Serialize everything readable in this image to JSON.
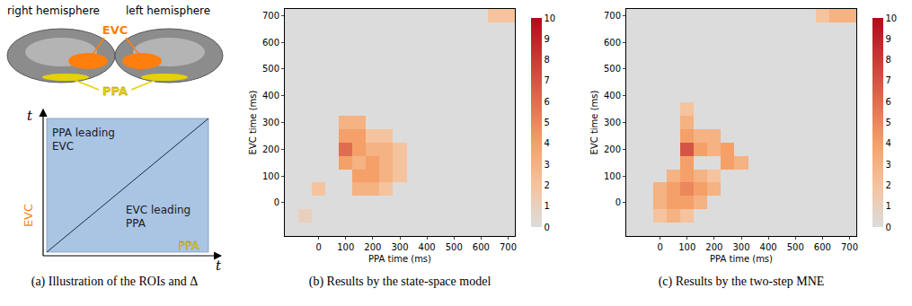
{
  "diagram": {
    "hemispheres": [
      "right hemisphere",
      "left hemisphere"
    ],
    "rois": [
      {
        "name": "EVC",
        "color": "#ff7f0e"
      },
      {
        "name": "PPA",
        "color": "#e6d200"
      }
    ],
    "axis_label": "t",
    "regions": [
      "PPA leading EVC",
      "EVC leading PPA"
    ]
  },
  "captions": [
    "(a) Illustration of the ROIs and Δ",
    "(b) Results by the state-space model",
    "(c) Results by the two-step MNE"
  ],
  "chart_data": [
    {
      "type": "heatmap",
      "x_label": "PPA time (ms)",
      "y_label": "EVC time (ms)",
      "x": [
        -100,
        -50,
        0,
        50,
        100,
        150,
        200,
        250,
        300,
        350,
        400,
        450,
        500,
        550,
        600,
        650,
        700
      ],
      "y": [
        -100,
        -50,
        0,
        50,
        100,
        150,
        200,
        250,
        300,
        350,
        400,
        450,
        500,
        550,
        600,
        650,
        700
      ],
      "xlim": [
        -125,
        725
      ],
      "ylim": [
        -125,
        725
      ],
      "xticks": [
        0,
        100,
        200,
        300,
        400,
        500,
        600,
        700
      ],
      "yticks": [
        0,
        100,
        200,
        300,
        400,
        500,
        600,
        700
      ],
      "zlim": [
        0,
        10
      ],
      "zticks": [
        0,
        1,
        2,
        3,
        4,
        5,
        6,
        7,
        8,
        9,
        10
      ],
      "z": [
        [
          0,
          0,
          0,
          0,
          0,
          0,
          0,
          0,
          0,
          0,
          0,
          0,
          0,
          0,
          0,
          0,
          0
        ],
        [
          0,
          1,
          0,
          0,
          0,
          0,
          0,
          0,
          0,
          0,
          0,
          0,
          0,
          0,
          0,
          0,
          0
        ],
        [
          0,
          0,
          0,
          0,
          0,
          0,
          0,
          0,
          0,
          0,
          0,
          0,
          0,
          0,
          0,
          0,
          0
        ],
        [
          0,
          0,
          2,
          0,
          0,
          3,
          3,
          2,
          0,
          0,
          0,
          0,
          0,
          0,
          0,
          0,
          0
        ],
        [
          0,
          0,
          0,
          0,
          0,
          4,
          4,
          3,
          2,
          0,
          0,
          0,
          0,
          0,
          0,
          0,
          0
        ],
        [
          0,
          0,
          0,
          0,
          4,
          3,
          4,
          3,
          2,
          0,
          0,
          0,
          0,
          0,
          0,
          0,
          0
        ],
        [
          0,
          0,
          0,
          0,
          6,
          4,
          3,
          3,
          2,
          0,
          0,
          0,
          0,
          0,
          0,
          0,
          0
        ],
        [
          0,
          0,
          0,
          0,
          4,
          4,
          2,
          2,
          0,
          0,
          0,
          0,
          0,
          0,
          0,
          0,
          0
        ],
        [
          0,
          0,
          0,
          0,
          3,
          3,
          0,
          0,
          0,
          0,
          0,
          0,
          0,
          0,
          0,
          0,
          0
        ],
        [
          0,
          0,
          0,
          0,
          0,
          0,
          0,
          0,
          0,
          0,
          0,
          0,
          0,
          0,
          0,
          0,
          0
        ],
        [
          0,
          0,
          0,
          0,
          0,
          0,
          0,
          0,
          0,
          0,
          0,
          0,
          0,
          0,
          0,
          0,
          0
        ],
        [
          0,
          0,
          0,
          0,
          0,
          0,
          0,
          0,
          0,
          0,
          0,
          0,
          0,
          0,
          0,
          0,
          0
        ],
        [
          0,
          0,
          0,
          0,
          0,
          0,
          0,
          0,
          0,
          0,
          0,
          0,
          0,
          0,
          0,
          0,
          0
        ],
        [
          0,
          0,
          0,
          0,
          0,
          0,
          0,
          0,
          0,
          0,
          0,
          0,
          0,
          0,
          0,
          0,
          0
        ],
        [
          0,
          0,
          0,
          0,
          0,
          0,
          0,
          0,
          0,
          0,
          0,
          0,
          0,
          0,
          0,
          0,
          0
        ],
        [
          0,
          0,
          0,
          0,
          0,
          0,
          0,
          0,
          0,
          0,
          0,
          0,
          0,
          0,
          0,
          0,
          0
        ],
        [
          0,
          0,
          0,
          0,
          0,
          0,
          0,
          0,
          0,
          0,
          0,
          0,
          0,
          0,
          0,
          2,
          2
        ]
      ]
    },
    {
      "type": "heatmap",
      "x_label": "PPA time (ms)",
      "y_label": "EVC time (ms)",
      "x": [
        -100,
        -50,
        0,
        50,
        100,
        150,
        200,
        250,
        300,
        350,
        400,
        450,
        500,
        550,
        600,
        650,
        700
      ],
      "y": [
        -100,
        -50,
        0,
        50,
        100,
        150,
        200,
        250,
        300,
        350,
        400,
        450,
        500,
        550,
        600,
        650,
        700
      ],
      "xlim": [
        -125,
        725
      ],
      "ylim": [
        -125,
        725
      ],
      "xticks": [
        0,
        100,
        200,
        300,
        400,
        500,
        600,
        700
      ],
      "yticks": [
        0,
        100,
        200,
        300,
        400,
        500,
        600,
        700
      ],
      "zlim": [
        0,
        10
      ],
      "zticks": [
        0,
        1,
        2,
        3,
        4,
        5,
        6,
        7,
        8,
        9,
        10
      ],
      "z": [
        [
          0,
          0,
          0,
          0,
          0,
          0,
          0,
          0,
          0,
          0,
          0,
          0,
          0,
          0,
          0,
          0,
          0
        ],
        [
          0,
          0,
          2,
          3,
          2,
          0,
          0,
          0,
          0,
          0,
          0,
          0,
          0,
          0,
          0,
          0,
          0
        ],
        [
          0,
          0,
          3,
          4,
          4,
          3,
          0,
          0,
          0,
          0,
          0,
          0,
          0,
          0,
          0,
          0,
          0
        ],
        [
          0,
          0,
          3,
          4,
          5,
          4,
          3,
          0,
          0,
          0,
          0,
          0,
          0,
          0,
          0,
          0,
          0
        ],
        [
          0,
          0,
          0,
          3,
          4,
          3,
          2,
          0,
          0,
          0,
          0,
          0,
          0,
          0,
          0,
          0,
          0
        ],
        [
          0,
          0,
          0,
          0,
          4,
          0,
          0,
          4,
          3,
          0,
          0,
          0,
          0,
          0,
          0,
          0,
          0
        ],
        [
          0,
          0,
          0,
          0,
          7,
          4,
          3,
          4,
          0,
          0,
          0,
          0,
          0,
          0,
          0,
          0,
          0
        ],
        [
          0,
          0,
          0,
          0,
          4,
          3,
          3,
          0,
          0,
          0,
          0,
          0,
          0,
          0,
          0,
          0,
          0
        ],
        [
          0,
          0,
          0,
          0,
          3,
          0,
          0,
          0,
          0,
          0,
          0,
          0,
          0,
          0,
          0,
          0,
          0
        ],
        [
          0,
          0,
          0,
          0,
          2,
          0,
          0,
          0,
          0,
          0,
          0,
          0,
          0,
          0,
          0,
          0,
          0
        ],
        [
          0,
          0,
          0,
          0,
          0,
          0,
          0,
          0,
          0,
          0,
          0,
          0,
          0,
          0,
          0,
          0,
          0
        ],
        [
          0,
          0,
          0,
          0,
          0,
          0,
          0,
          0,
          0,
          0,
          0,
          0,
          0,
          0,
          0,
          0,
          0
        ],
        [
          0,
          0,
          0,
          0,
          0,
          0,
          0,
          0,
          0,
          0,
          0,
          0,
          0,
          0,
          0,
          0,
          0
        ],
        [
          0,
          0,
          0,
          0,
          0,
          0,
          0,
          0,
          0,
          0,
          0,
          0,
          0,
          0,
          0,
          0,
          0
        ],
        [
          0,
          0,
          0,
          0,
          0,
          0,
          0,
          0,
          0,
          0,
          0,
          0,
          0,
          0,
          0,
          0,
          0
        ],
        [
          0,
          0,
          0,
          0,
          0,
          0,
          0,
          0,
          0,
          0,
          0,
          0,
          0,
          0,
          0,
          0,
          0
        ],
        [
          0,
          0,
          0,
          0,
          0,
          0,
          0,
          0,
          0,
          0,
          0,
          0,
          0,
          0,
          2,
          3,
          3
        ]
      ]
    }
  ]
}
